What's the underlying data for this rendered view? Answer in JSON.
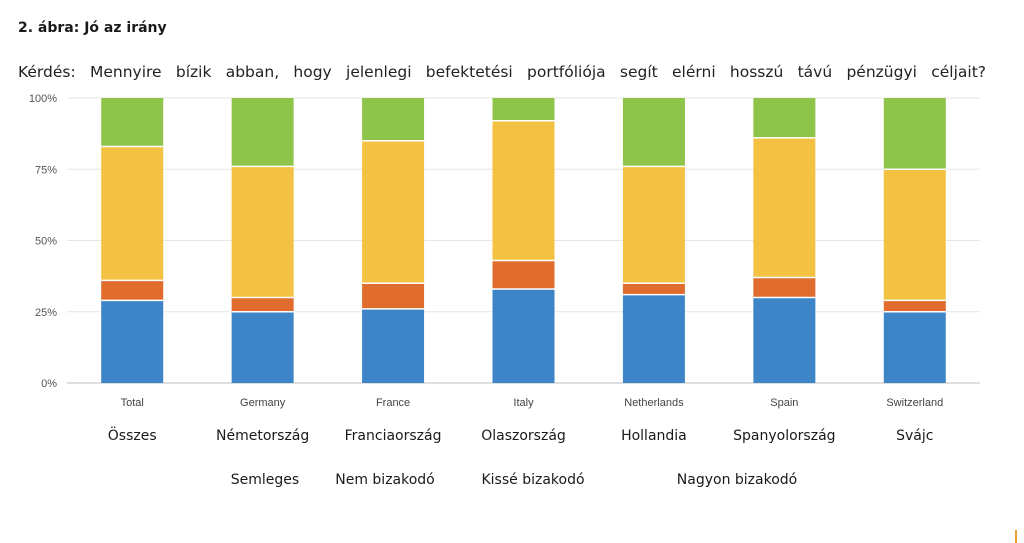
{
  "figure": {
    "title": "2. ábra: Jó az irány",
    "question": "Kérdés: Mennyire bízik abban, hogy jelenlegi befektetési portfóliója segít elérni hosszú távú pénzügyi céljait?"
  },
  "chart_data": {
    "type": "bar",
    "stacked": true,
    "categories": [
      "Total",
      "Germany",
      "France",
      "Italy",
      "Netherlands",
      "Spain",
      "Switzerland"
    ],
    "category_labels_hu": [
      "Összes",
      "Németország",
      "Franciaország",
      "Olaszország",
      "Hollandia",
      "Spanyolország",
      "Svájc"
    ],
    "yticks": [
      "0%",
      "25%",
      "50%",
      "75%",
      "100%"
    ],
    "ylim": [
      0,
      100
    ],
    "series": [
      {
        "name": "Semleges",
        "color": "#3d85c6",
        "values": [
          29,
          25,
          26,
          33,
          31,
          30,
          25
        ]
      },
      {
        "name": "Nem bizakodó",
        "color": "#e06c2e",
        "values": [
          7,
          5,
          9,
          10,
          4,
          7,
          4
        ]
      },
      {
        "name": "Kissé bizakodó",
        "color": "#f4c242",
        "values": [
          47,
          46,
          50,
          49,
          41,
          49,
          46
        ]
      },
      {
        "name": "Nagyon bizakodó",
        "color": "#8fc44a",
        "values": [
          17,
          24,
          15,
          8,
          24,
          14,
          25
        ]
      }
    ],
    "grid": true
  }
}
